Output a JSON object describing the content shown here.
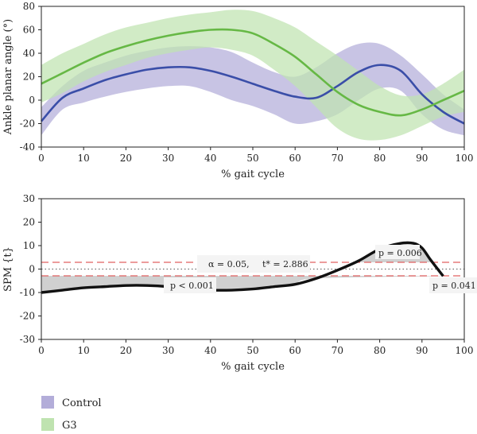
{
  "chart_data": [
    {
      "type": "line",
      "xlabel": "% gait cycle",
      "ylabel": "Ankle planar angle (°)",
      "xlim": [
        0,
        100
      ],
      "ylim": [
        -40,
        80
      ],
      "xticks": [
        0,
        10,
        20,
        30,
        40,
        50,
        60,
        70,
        80,
        90,
        100
      ],
      "yticks": [
        -40,
        -20,
        0,
        20,
        40,
        60,
        80
      ],
      "x": [
        0,
        5,
        10,
        15,
        20,
        25,
        30,
        35,
        40,
        45,
        50,
        55,
        60,
        65,
        70,
        75,
        80,
        85,
        90,
        95,
        100
      ],
      "series": [
        {
          "name": "Control",
          "color": "#3a4ea8",
          "band_color": "#b3add9",
          "mean": [
            -18,
            2,
            10,
            17,
            22,
            26,
            28,
            28,
            25,
            20,
            14,
            8,
            3,
            2,
            12,
            24,
            30,
            25,
            5,
            -10,
            -20
          ],
          "upper": [
            -6,
            12,
            25,
            32,
            38,
            42,
            45,
            46,
            45,
            41,
            32,
            24,
            20,
            28,
            40,
            48,
            48,
            38,
            22,
            5,
            -8
          ],
          "lower": [
            -30,
            -8,
            -2,
            3,
            7,
            10,
            12,
            12,
            7,
            0,
            -5,
            -12,
            -20,
            -18,
            -12,
            0,
            10,
            8,
            -12,
            -25,
            -30
          ]
        },
        {
          "name": "G3",
          "color": "#66b845",
          "band_color": "#bfe3b0",
          "mean": [
            14,
            23,
            32,
            40,
            46,
            51,
            55,
            58,
            60,
            60,
            57,
            48,
            37,
            22,
            7,
            -4,
            -10,
            -13,
            -8,
            0,
            8
          ],
          "upper": [
            30,
            40,
            48,
            56,
            62,
            66,
            70,
            73,
            75,
            77,
            76,
            70,
            62,
            50,
            38,
            25,
            12,
            4,
            5,
            14,
            26
          ],
          "lower": [
            -2,
            6,
            16,
            24,
            30,
            36,
            40,
            43,
            45,
            43,
            38,
            26,
            12,
            -6,
            -24,
            -33,
            -34,
            -30,
            -22,
            -14,
            -10
          ]
        }
      ]
    },
    {
      "type": "line",
      "xlabel": "% gait cycle",
      "ylabel": "SPM {t}",
      "xlim": [
        0,
        100
      ],
      "ylim": [
        -30,
        30
      ],
      "xticks": [
        0,
        10,
        20,
        30,
        40,
        50,
        60,
        70,
        80,
        90,
        100
      ],
      "yticks": [
        -30,
        -20,
        -10,
        0,
        10,
        20,
        30
      ],
      "threshold": 2.886,
      "series": [
        {
          "name": "SPM{t}",
          "color": "#111111",
          "x": [
            0,
            5,
            10,
            15,
            20,
            25,
            30,
            35,
            40,
            45,
            50,
            55,
            60,
            65,
            70,
            75,
            80,
            85,
            88,
            90,
            92,
            95
          ],
          "y": [
            -10,
            -9,
            -8,
            -7.5,
            -7,
            -7,
            -7.5,
            -8.5,
            -9,
            -9,
            -8.5,
            -7.5,
            -6.5,
            -4,
            -0.5,
            3.5,
            8.5,
            11,
            11,
            9,
            4,
            -3
          ]
        }
      ],
      "annotations": {
        "alpha": "α = 0.05,",
        "tstar": "t* = 2.886",
        "p1": "p < 0.001",
        "p2": "p = 0.006",
        "p3": "p = 0.041"
      }
    }
  ],
  "legend": [
    {
      "name": "Control",
      "color": "#b3add9"
    },
    {
      "name": "G3",
      "color": "#bfe3b0"
    }
  ]
}
